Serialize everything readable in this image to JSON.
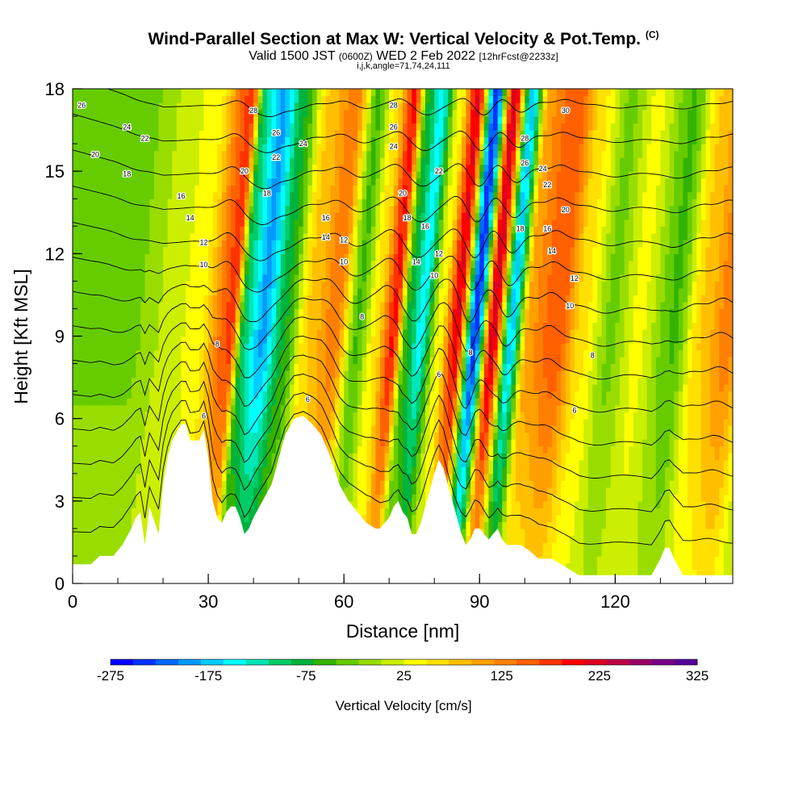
{
  "header": {
    "title": "Wind-Parallel Section at Max W: Vertical Velocity & Pot.Temp.",
    "title_mark": "(C)",
    "valid_prefix": "Valid 1500 JST",
    "valid_utc": "(0600Z)",
    "valid_date": "WED 2 Feb 2022",
    "forecast": "[12hrFcst@2233z]",
    "indices": "i,j,k,angle=71,74,24,111"
  },
  "chart_data": {
    "type": "heatmap",
    "xlabel": "Distance [nm]",
    "ylabel": "Height [Kft MSL]",
    "xlim": [
      0,
      146
    ],
    "ylim": [
      0,
      18
    ],
    "x_ticks": [
      0,
      30,
      60,
      90,
      120
    ],
    "y_ticks": [
      0,
      3,
      6,
      9,
      12,
      15,
      18
    ],
    "colorbar": {
      "label": "Vertical Velocity [cm/s]",
      "tick_labels": [
        "-275",
        "-175",
        "-75",
        "25",
        "125",
        "225",
        "325"
      ],
      "colors": [
        "#0000ff",
        "#0033ff",
        "#0066ff",
        "#0099ff",
        "#00ccff",
        "#00ffff",
        "#00e6b8",
        "#00cc66",
        "#00b33c",
        "#33b300",
        "#66cc00",
        "#99dd00",
        "#ccee00",
        "#ffff00",
        "#ffe000",
        "#ffbf00",
        "#ff9f00",
        "#ff8000",
        "#ff6000",
        "#ff3300",
        "#ff0000",
        "#dd0022",
        "#bb0044",
        "#990066",
        "#770088",
        "#550099"
      ]
    },
    "w_bands": [
      {
        "x": 8,
        "w": -40
      },
      {
        "x": 14,
        "w": -10
      },
      {
        "x": 22,
        "w": 20
      },
      {
        "x": 30,
        "w": 160
      },
      {
        "x": 33,
        "w": -120
      },
      {
        "x": 37,
        "w": -200
      },
      {
        "x": 42,
        "w": -80
      },
      {
        "x": 47,
        "w": 60
      },
      {
        "x": 53,
        "w": 120
      },
      {
        "x": 58,
        "w": -60
      },
      {
        "x": 62,
        "w": 40
      },
      {
        "x": 66,
        "w": 180
      },
      {
        "x": 69,
        "w": -80
      },
      {
        "x": 72,
        "w": -160
      },
      {
        "x": 76,
        "w": 20
      },
      {
        "x": 80,
        "w": 200
      },
      {
        "x": 84,
        "w": -260
      },
      {
        "x": 88,
        "w": 220
      },
      {
        "x": 92,
        "w": -180
      },
      {
        "x": 96,
        "w": 100
      },
      {
        "x": 102,
        "w": 150
      },
      {
        "x": 108,
        "w": 40
      },
      {
        "x": 114,
        "w": -40
      },
      {
        "x": 120,
        "w": 20
      },
      {
        "x": 128,
        "w": -60
      },
      {
        "x": 134,
        "w": 60
      },
      {
        "x": 140,
        "w": 120
      },
      {
        "x": 146,
        "w": -20
      }
    ],
    "terrain": [
      [
        0,
        0.7
      ],
      [
        4,
        0.7
      ],
      [
        6,
        1.0
      ],
      [
        9,
        1.0
      ],
      [
        11,
        1.4
      ],
      [
        13,
        2.0
      ],
      [
        14,
        2.4
      ],
      [
        15,
        2.6
      ],
      [
        16,
        1.4
      ],
      [
        17,
        2.8
      ],
      [
        19,
        1.8
      ],
      [
        20,
        3.6
      ],
      [
        21,
        4.6
      ],
      [
        22,
        5.2
      ],
      [
        24,
        5.8
      ],
      [
        25,
        5.8
      ],
      [
        26,
        5.2
      ],
      [
        28,
        5.2
      ],
      [
        29,
        5.6
      ],
      [
        30,
        4.6
      ],
      [
        31,
        3.0
      ],
      [
        32,
        2.4
      ],
      [
        33,
        2.2
      ],
      [
        34,
        2.6
      ],
      [
        35,
        2.8
      ],
      [
        36,
        2.8
      ],
      [
        37,
        2.4
      ],
      [
        38,
        1.8
      ],
      [
        39,
        2.0
      ],
      [
        40,
        2.4
      ],
      [
        42,
        3.0
      ],
      [
        44,
        3.6
      ],
      [
        45,
        4.2
      ],
      [
        46,
        4.8
      ],
      [
        47,
        5.4
      ],
      [
        49,
        6.0
      ],
      [
        51,
        6.1
      ],
      [
        53,
        5.8
      ],
      [
        55,
        5.4
      ],
      [
        57,
        4.6
      ],
      [
        59,
        3.6
      ],
      [
        61,
        3.0
      ],
      [
        63,
        2.6
      ],
      [
        65,
        2.2
      ],
      [
        67,
        2.0
      ],
      [
        68,
        2.0
      ],
      [
        70,
        2.4
      ],
      [
        71,
        2.8
      ],
      [
        72,
        3.0
      ],
      [
        73,
        2.6
      ],
      [
        74,
        2.4
      ],
      [
        75,
        1.8
      ],
      [
        76,
        1.8
      ],
      [
        77,
        2.2
      ],
      [
        78,
        2.8
      ],
      [
        79,
        3.4
      ],
      [
        80,
        4.0
      ],
      [
        81,
        4.5
      ],
      [
        82,
        4.2
      ],
      [
        83,
        3.6
      ],
      [
        84,
        3.0
      ],
      [
        85,
        2.4
      ],
      [
        86,
        1.8
      ],
      [
        87,
        1.4
      ],
      [
        88,
        1.6
      ],
      [
        89,
        2.0
      ],
      [
        90,
        2.0
      ],
      [
        91,
        1.8
      ],
      [
        92,
        1.6
      ],
      [
        93,
        1.8
      ],
      [
        94,
        2.0
      ],
      [
        95,
        1.6
      ],
      [
        96,
        1.4
      ],
      [
        99,
        1.4
      ],
      [
        101,
        1.2
      ],
      [
        103,
        0.9
      ],
      [
        106,
        0.9
      ],
      [
        109,
        0.6
      ],
      [
        112,
        0.3
      ],
      [
        128,
        0.3
      ],
      [
        129,
        0.6
      ],
      [
        130,
        0.9
      ],
      [
        131,
        1.3
      ],
      [
        132,
        1.3
      ],
      [
        133,
        0.9
      ],
      [
        134,
        0.6
      ],
      [
        135,
        0.3
      ],
      [
        146,
        0.3
      ]
    ],
    "theta_levels": [
      4,
      6,
      8,
      10,
      12,
      14,
      16,
      18,
      20,
      22,
      24,
      26,
      28,
      30
    ],
    "contour_labels": [
      {
        "x": 2,
        "y": 17.4,
        "text": "26"
      },
      {
        "x": 12,
        "y": 16.6,
        "text": "24"
      },
      {
        "x": 16,
        "y": 16.2,
        "text": "22"
      },
      {
        "x": 5,
        "y": 15.6,
        "text": "20"
      },
      {
        "x": 12,
        "y": 14.9,
        "text": "18"
      },
      {
        "x": 24,
        "y": 14.1,
        "text": "16"
      },
      {
        "x": 26,
        "y": 13.3,
        "text": "14"
      },
      {
        "x": 29,
        "y": 12.4,
        "text": "12"
      },
      {
        "x": 29,
        "y": 11.6,
        "text": "10"
      },
      {
        "x": 32,
        "y": 8.7,
        "text": "8"
      },
      {
        "x": 29,
        "y": 6.1,
        "text": "6"
      },
      {
        "x": 40,
        "y": 17.2,
        "text": "28"
      },
      {
        "x": 45,
        "y": 16.4,
        "text": "26"
      },
      {
        "x": 51,
        "y": 16.0,
        "text": "24"
      },
      {
        "x": 45,
        "y": 15.5,
        "text": "22"
      },
      {
        "x": 38,
        "y": 15.0,
        "text": "20"
      },
      {
        "x": 43,
        "y": 14.2,
        "text": "18"
      },
      {
        "x": 56,
        "y": 13.3,
        "text": "16"
      },
      {
        "x": 56,
        "y": 12.6,
        "text": "14"
      },
      {
        "x": 60,
        "y": 12.5,
        "text": "12"
      },
      {
        "x": 60,
        "y": 11.7,
        "text": "10"
      },
      {
        "x": 64,
        "y": 9.7,
        "text": "8"
      },
      {
        "x": 52,
        "y": 6.7,
        "text": "6"
      },
      {
        "x": 71,
        "y": 17.4,
        "text": "28"
      },
      {
        "x": 71,
        "y": 16.6,
        "text": "26"
      },
      {
        "x": 71,
        "y": 15.9,
        "text": "24"
      },
      {
        "x": 81,
        "y": 15.0,
        "text": "22"
      },
      {
        "x": 73,
        "y": 14.2,
        "text": "20"
      },
      {
        "x": 74,
        "y": 13.3,
        "text": "18"
      },
      {
        "x": 78,
        "y": 13.0,
        "text": "16"
      },
      {
        "x": 76,
        "y": 11.7,
        "text": "14"
      },
      {
        "x": 81,
        "y": 12.0,
        "text": "12"
      },
      {
        "x": 80,
        "y": 11.2,
        "text": "10"
      },
      {
        "x": 88,
        "y": 8.4,
        "text": "8"
      },
      {
        "x": 81,
        "y": 7.6,
        "text": "6"
      },
      {
        "x": 109,
        "y": 17.2,
        "text": "30"
      },
      {
        "x": 100,
        "y": 16.2,
        "text": "28"
      },
      {
        "x": 100,
        "y": 15.3,
        "text": "26"
      },
      {
        "x": 104,
        "y": 15.1,
        "text": "24"
      },
      {
        "x": 105,
        "y": 14.5,
        "text": "22"
      },
      {
        "x": 109,
        "y": 13.6,
        "text": "20"
      },
      {
        "x": 99,
        "y": 12.9,
        "text": "18"
      },
      {
        "x": 105,
        "y": 12.9,
        "text": "16"
      },
      {
        "x": 106,
        "y": 12.1,
        "text": "14"
      },
      {
        "x": 111,
        "y": 11.1,
        "text": "12"
      },
      {
        "x": 110,
        "y": 10.1,
        "text": "10"
      },
      {
        "x": 115,
        "y": 8.3,
        "text": "8"
      },
      {
        "x": 111,
        "y": 6.3,
        "text": "6"
      }
    ]
  }
}
